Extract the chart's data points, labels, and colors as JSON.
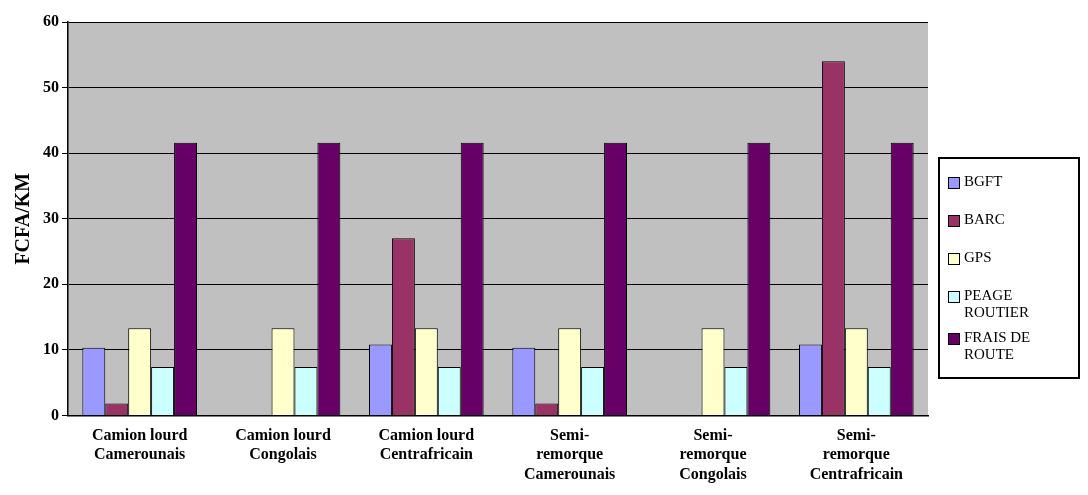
{
  "chart_data": {
    "type": "bar",
    "ylabel": "FCFA/KM",
    "categories": [
      "Camion lourd Camerounais",
      "Camion lourd Congolais",
      "Camion lourd Centrafricain",
      "Semi-remorque Camerounais",
      "Semi-remorque Congolais",
      "Semi-remorque Centrafricain"
    ],
    "series": [
      {
        "name": "BGFT",
        "color": "#9999ff",
        "values": [
          10.3,
          0,
          10.8,
          10.3,
          0,
          10.8
        ]
      },
      {
        "name": "BARC",
        "color": "#993366",
        "values": [
          1.8,
          0,
          27,
          1.8,
          0,
          54
        ]
      },
      {
        "name": "GPS",
        "color": "#ffffcc",
        "values": [
          13.3,
          13.3,
          13.3,
          13.3,
          13.3,
          13.3
        ]
      },
      {
        "name": "PEAGE ROUTIER",
        "color": "#ccffff",
        "values": [
          7.4,
          7.4,
          7.4,
          7.4,
          7.4,
          7.4
        ]
      },
      {
        "name": "FRAIS DE ROUTE",
        "color": "#660066",
        "values": [
          41.6,
          41.6,
          41.6,
          41.6,
          41.6,
          41.6
        ]
      }
    ],
    "ylim": [
      0,
      60
    ],
    "yticks": [
      0,
      10,
      20,
      30,
      40,
      50,
      60
    ],
    "grid": "y",
    "legend": "right"
  }
}
